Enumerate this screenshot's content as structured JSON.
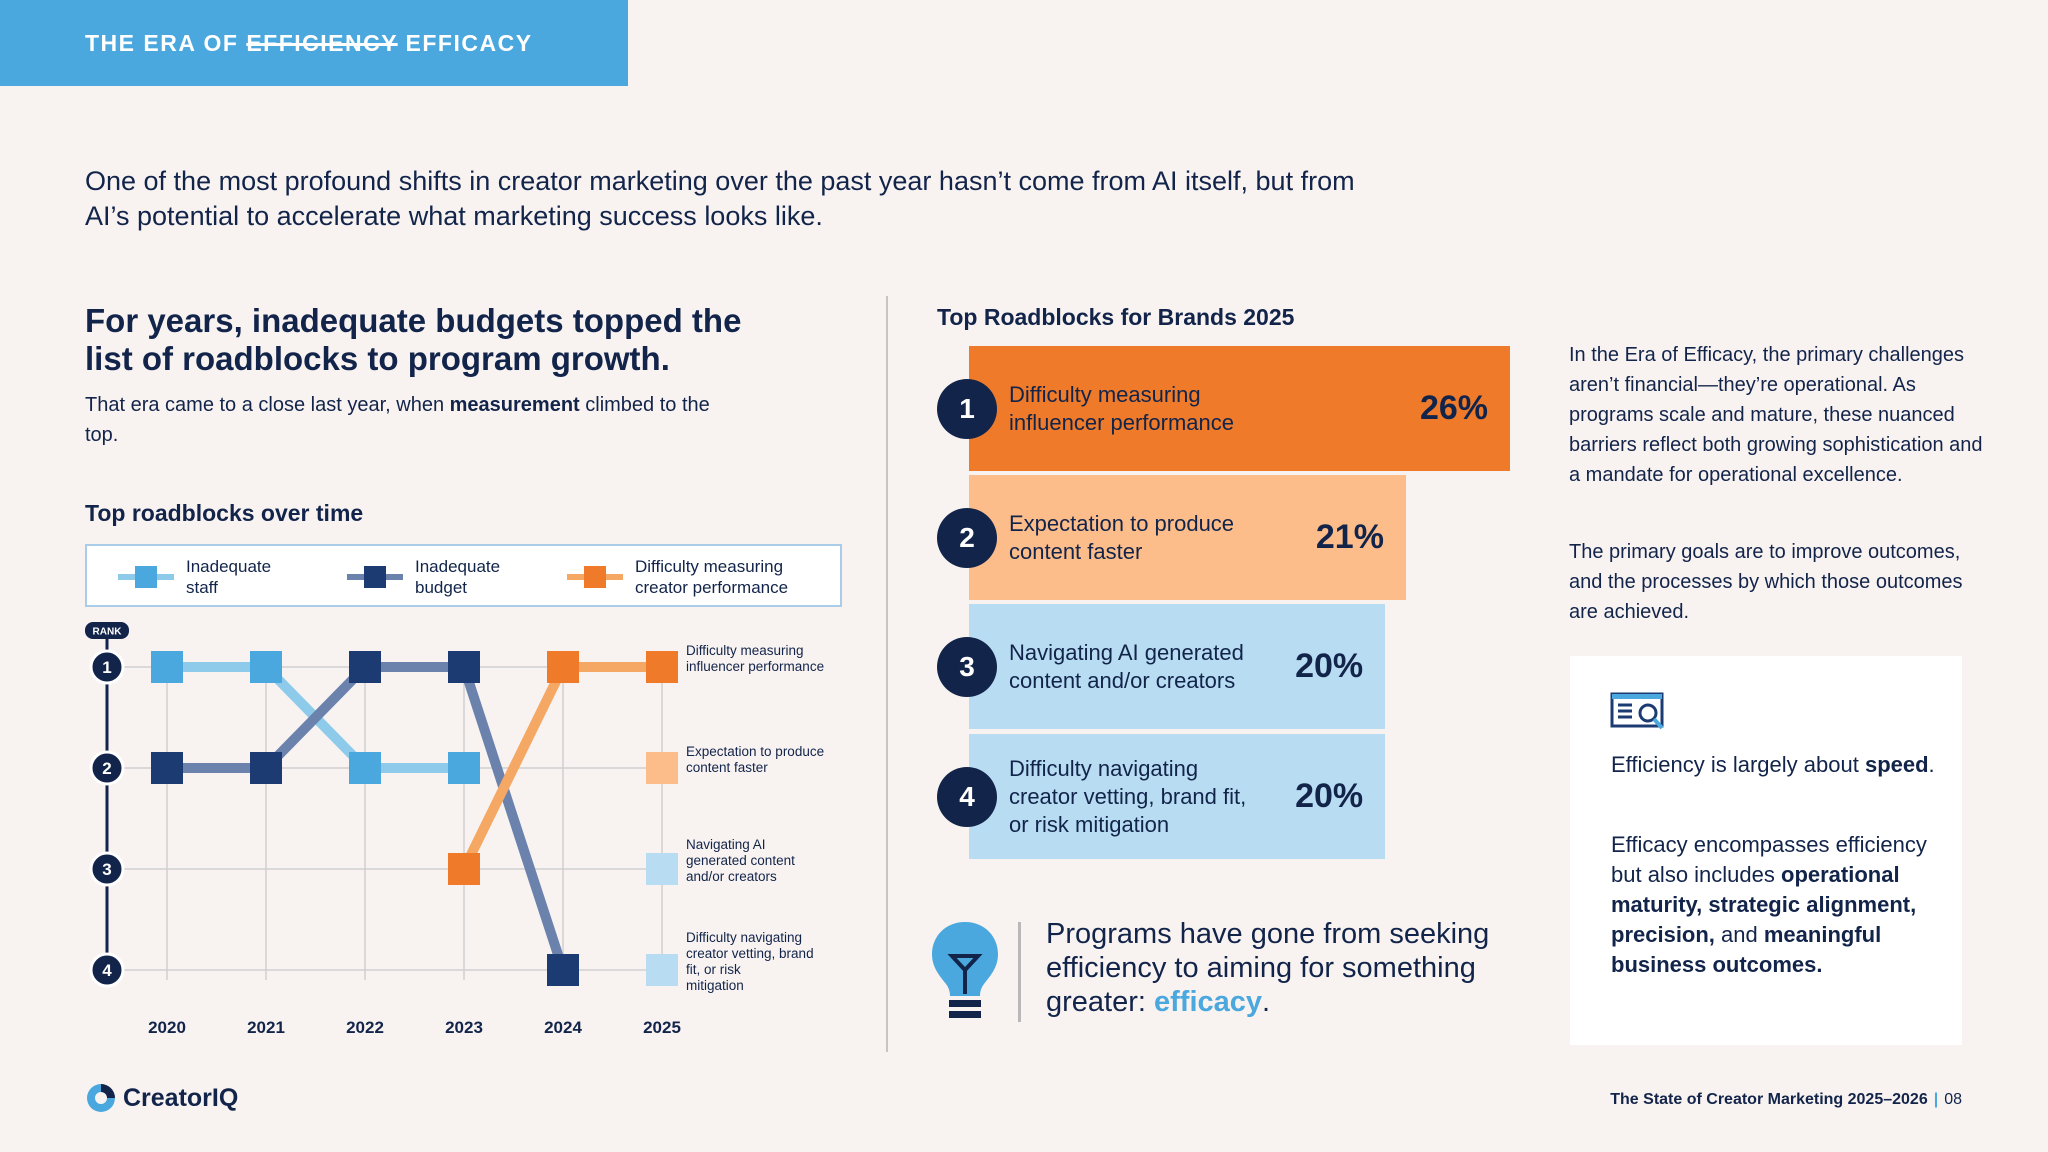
{
  "header": {
    "prefix": "THE ERA OF",
    "struck_word": "EFFICIENCY",
    "replacement_word": "EFFICACY"
  },
  "intro": "One of the most profound shifts in creator marketing over the past year hasn’t come from AI itself, but from AI’s potential to accelerate what marketing success looks like.",
  "left": {
    "heading": "For years, inadequate budgets topped the list of roadblocks to program growth.",
    "sub_pre": "That era came to a close last year, when ",
    "sub_bold": "measurement",
    "sub_post": " climbed to the top."
  },
  "chart_data": [
    {
      "type": "line",
      "title": "Top roadblocks over time",
      "xlabel": "",
      "ylabel": "RANK",
      "x": [
        "2020",
        "2021",
        "2022",
        "2023",
        "2024",
        "2025"
      ],
      "y_ticks": [
        "1",
        "2",
        "3",
        "4"
      ],
      "ylim": [
        1,
        4
      ],
      "y_inverted": true,
      "grid": true,
      "legend_position": "top",
      "series": [
        {
          "name": "Inadequate staff",
          "color": "#4aa8de",
          "line_color": "#8ecbea",
          "values": [
            1,
            1,
            2,
            2,
            null,
            null
          ]
        },
        {
          "name": "Inadequate budget",
          "color": "#1d3b73",
          "line_color": "#6b82ad",
          "values": [
            2,
            2,
            1,
            1,
            4,
            null
          ]
        },
        {
          "name": "Difficulty measuring creator performance",
          "color": "#ee7a2a",
          "line_color": "#f5a864",
          "values": [
            null,
            null,
            null,
            3,
            1,
            1
          ]
        }
      ],
      "end_labels": [
        {
          "rank": 1,
          "text": "Difficulty measuring influencer performance",
          "color": "#ee7a2a"
        },
        {
          "rank": 2,
          "text": "Expectation to produce content faster",
          "color": "#fdbd8a"
        },
        {
          "rank": 3,
          "text": "Navigating AI generated content and/or creators",
          "color": "#b8dcf2"
        },
        {
          "rank": 4,
          "text": "Difficulty navigating creator vetting, brand fit, or risk mitigation",
          "color": "#b8dcf2"
        }
      ]
    },
    {
      "type": "bar",
      "orientation": "horizontal",
      "title": "Top Roadblocks for Brands 2025",
      "categories": [
        "Difficulty measuring influencer performance",
        "Expectation to produce content faster",
        "Navigating AI generated content and/or creators",
        "Difficulty navigating creator vetting, brand fit, or risk mitigation"
      ],
      "values": [
        26,
        21,
        20,
        20
      ],
      "unit": "%",
      "colors": [
        "#ee7a2a",
        "#fdbd8a",
        "#b8dcf2",
        "#b8dcf2"
      ]
    }
  ],
  "legend": [
    {
      "label": "Inadequate staff"
    },
    {
      "label": "Inadequate budget"
    },
    {
      "label": "Difficulty measuring creator performance"
    }
  ],
  "roadblocks": [
    {
      "rank": "1",
      "label_line1": "Difficulty measuring",
      "label_line2": "influencer performance",
      "label_line3": "",
      "value_text": "26%"
    },
    {
      "rank": "2",
      "label_line1": "Expectation to produce",
      "label_line2": "content faster",
      "label_line3": "",
      "value_text": "21%"
    },
    {
      "rank": "3",
      "label_line1": "Navigating AI generated",
      "label_line2": "content and/or creators",
      "label_line3": "",
      "value_text": "20%"
    },
    {
      "rank": "4",
      "label_line1": "Difficulty navigating",
      "label_line2": "creator vetting, brand fit,",
      "label_line3": "or risk mitigation",
      "value_text": "20%"
    }
  ],
  "quote": {
    "text": "Programs have gone from seeking efficiency to aiming for something greater: ",
    "highlight": "efficacy",
    "end": "."
  },
  "side": {
    "p1": "In the Era of Efficacy, the primary challenges aren’t financial—they’re operational. As programs scale and mature, these nuanced barriers reflect both growing sophistication and a mandate for operational excellence.",
    "p2": "The primary goals are to improve outcomes, and the processes by which those outcomes are achieved."
  },
  "card": {
    "p1_pre": "Efficiency is largely about ",
    "p1_bold": "speed",
    "p1_post": ".",
    "p2_pre": "Efficacy encompasses efficiency but also includes ",
    "p2_bold1": "operational maturity, strategic alignment, precision,",
    "p2_mid": " and ",
    "p2_bold2": "meaningful business outcomes."
  },
  "footer": {
    "brand": "CreatorIQ",
    "report": "The State of Creator Marketing 2025–2026",
    "page": "08"
  },
  "colors": {
    "accent": "#4aa8de",
    "navy": "#12244a",
    "orange": "#ee7a2a",
    "light_orange": "#fdbd8a",
    "light_blue": "#b8dcf2",
    "background": "#f8f3f1"
  },
  "icons": [
    "lightbulb-icon",
    "document-search-icon",
    "creatoriq-logo-icon"
  ]
}
